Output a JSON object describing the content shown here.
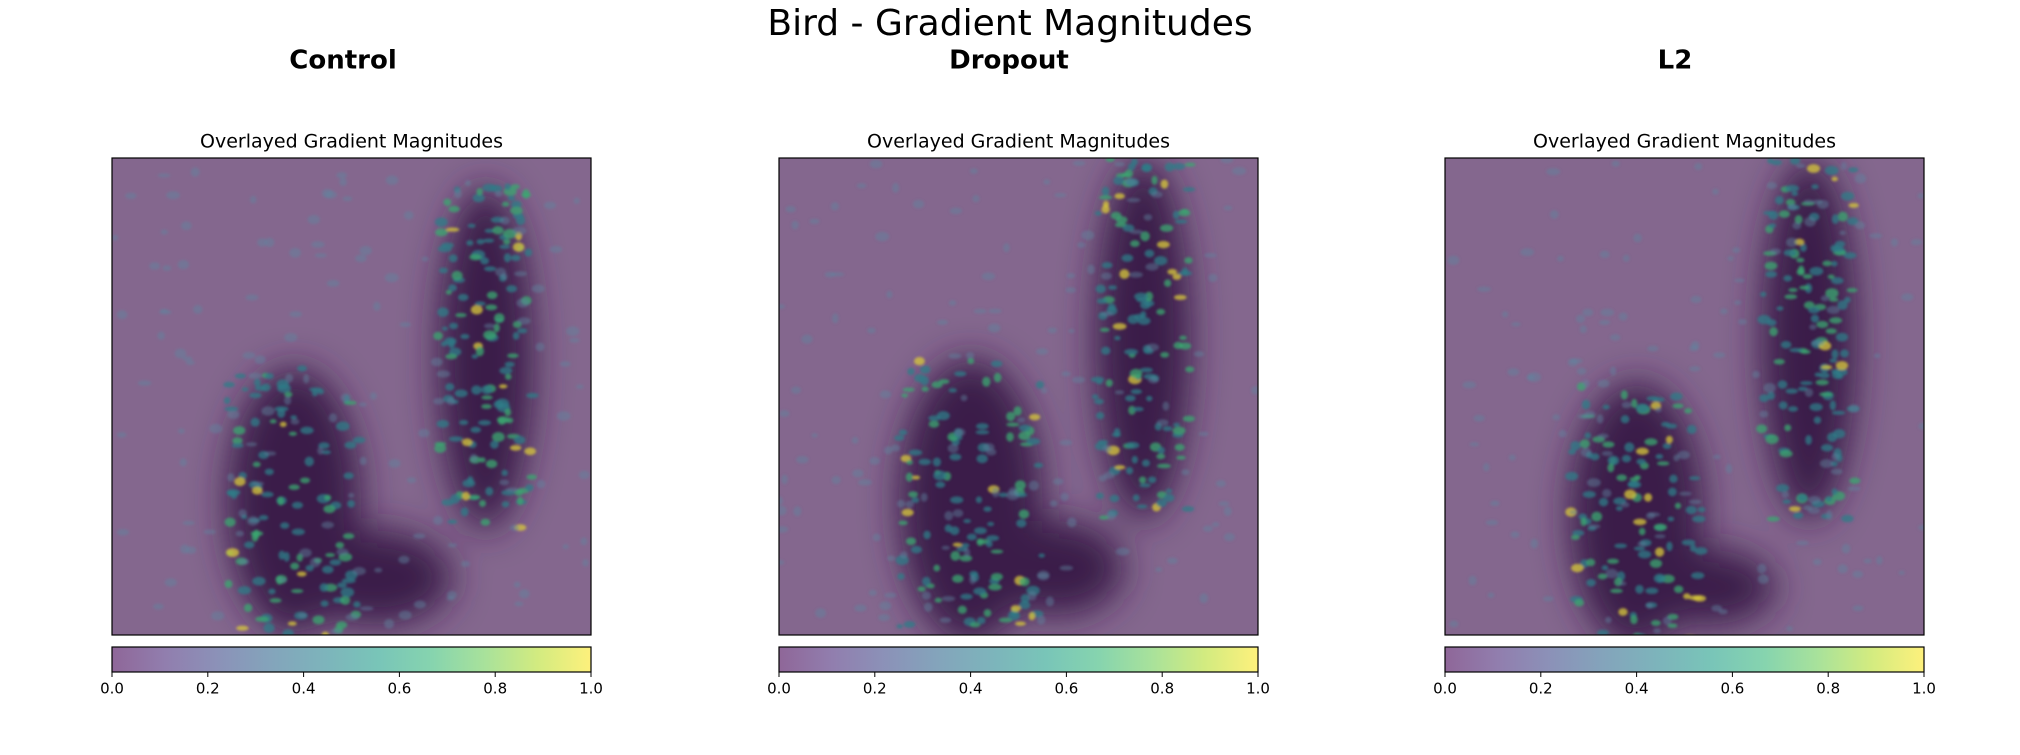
{
  "title": "Bird - Gradient Magnitudes",
  "chart_data": [
    {
      "type": "heatmap",
      "title": "Control",
      "subtitle": "Overlayed Gradient Magnitudes",
      "clim": [
        0,
        1
      ],
      "colorbar_ticks": [
        {
          "value": 0,
          "label": "0.0"
        },
        {
          "value": 0.2,
          "label": "0.2"
        },
        {
          "value": 0.4,
          "label": "0.4"
        },
        {
          "value": 0.6,
          "label": "0.6"
        },
        {
          "value": 0.8,
          "label": "0.8"
        },
        {
          "value": 1,
          "label": "1.0"
        }
      ],
      "colormap": [
        "#440154",
        "#482878",
        "#3e4989",
        "#31688e",
        "#26828e",
        "#1f9e89",
        "#35b779",
        "#6ece58",
        "#b5de2b",
        "#fde725"
      ],
      "alpha": 0.6
    },
    {
      "type": "heatmap",
      "title": "Dropout",
      "subtitle": "Overlayed Gradient Magnitudes",
      "clim": [
        0,
        1
      ],
      "colorbar_ticks": [
        {
          "value": 0,
          "label": "0.0"
        },
        {
          "value": 0.2,
          "label": "0.2"
        },
        {
          "value": 0.4,
          "label": "0.4"
        },
        {
          "value": 0.6,
          "label": "0.6"
        },
        {
          "value": 0.8,
          "label": "0.8"
        },
        {
          "value": 1,
          "label": "1.0"
        }
      ],
      "colormap": [
        "#440154",
        "#482878",
        "#3e4989",
        "#31688e",
        "#26828e",
        "#1f9e89",
        "#35b779",
        "#6ece58",
        "#b5de2b",
        "#fde725"
      ],
      "alpha": 0.6
    },
    {
      "type": "heatmap",
      "title": "L2",
      "subtitle": "Overlayed Gradient Magnitudes",
      "clim": [
        0,
        1
      ],
      "colorbar_ticks": [
        {
          "value": 0,
          "label": "0.0"
        },
        {
          "value": 0.2,
          "label": "0.2"
        },
        {
          "value": 0.4,
          "label": "0.4"
        },
        {
          "value": 0.6,
          "label": "0.6"
        },
        {
          "value": 0.8,
          "label": "0.8"
        },
        {
          "value": 1,
          "label": "1.0"
        }
      ],
      "colormap": [
        "#440154",
        "#482878",
        "#3e4989",
        "#31688e",
        "#26828e",
        "#1f9e89",
        "#35b779",
        "#6ece58",
        "#b5de2b",
        "#fde725"
      ],
      "alpha": 0.6
    }
  ]
}
